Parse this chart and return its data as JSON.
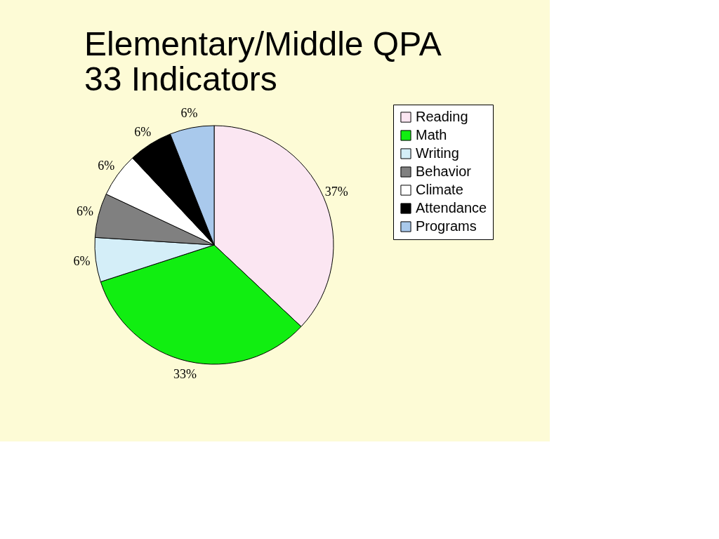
{
  "chart_data": {
    "type": "pie",
    "title": "Elementary/Middle QPA\n33 Indicators",
    "categories": [
      "Reading",
      "Math",
      "Writing",
      "Behavior",
      "Climate",
      "Attendance",
      "Programs"
    ],
    "values": [
      37,
      33,
      6,
      6,
      6,
      6,
      6
    ],
    "colors": [
      "#fbe6f2",
      "#11ee11",
      "#d4eef8",
      "#808080",
      "#ffffff",
      "#000000",
      "#a9c9ec"
    ],
    "value_labels": [
      "37%",
      "33%",
      "6%",
      "6%",
      "6%",
      "6%",
      "6%"
    ],
    "legend": "right"
  }
}
